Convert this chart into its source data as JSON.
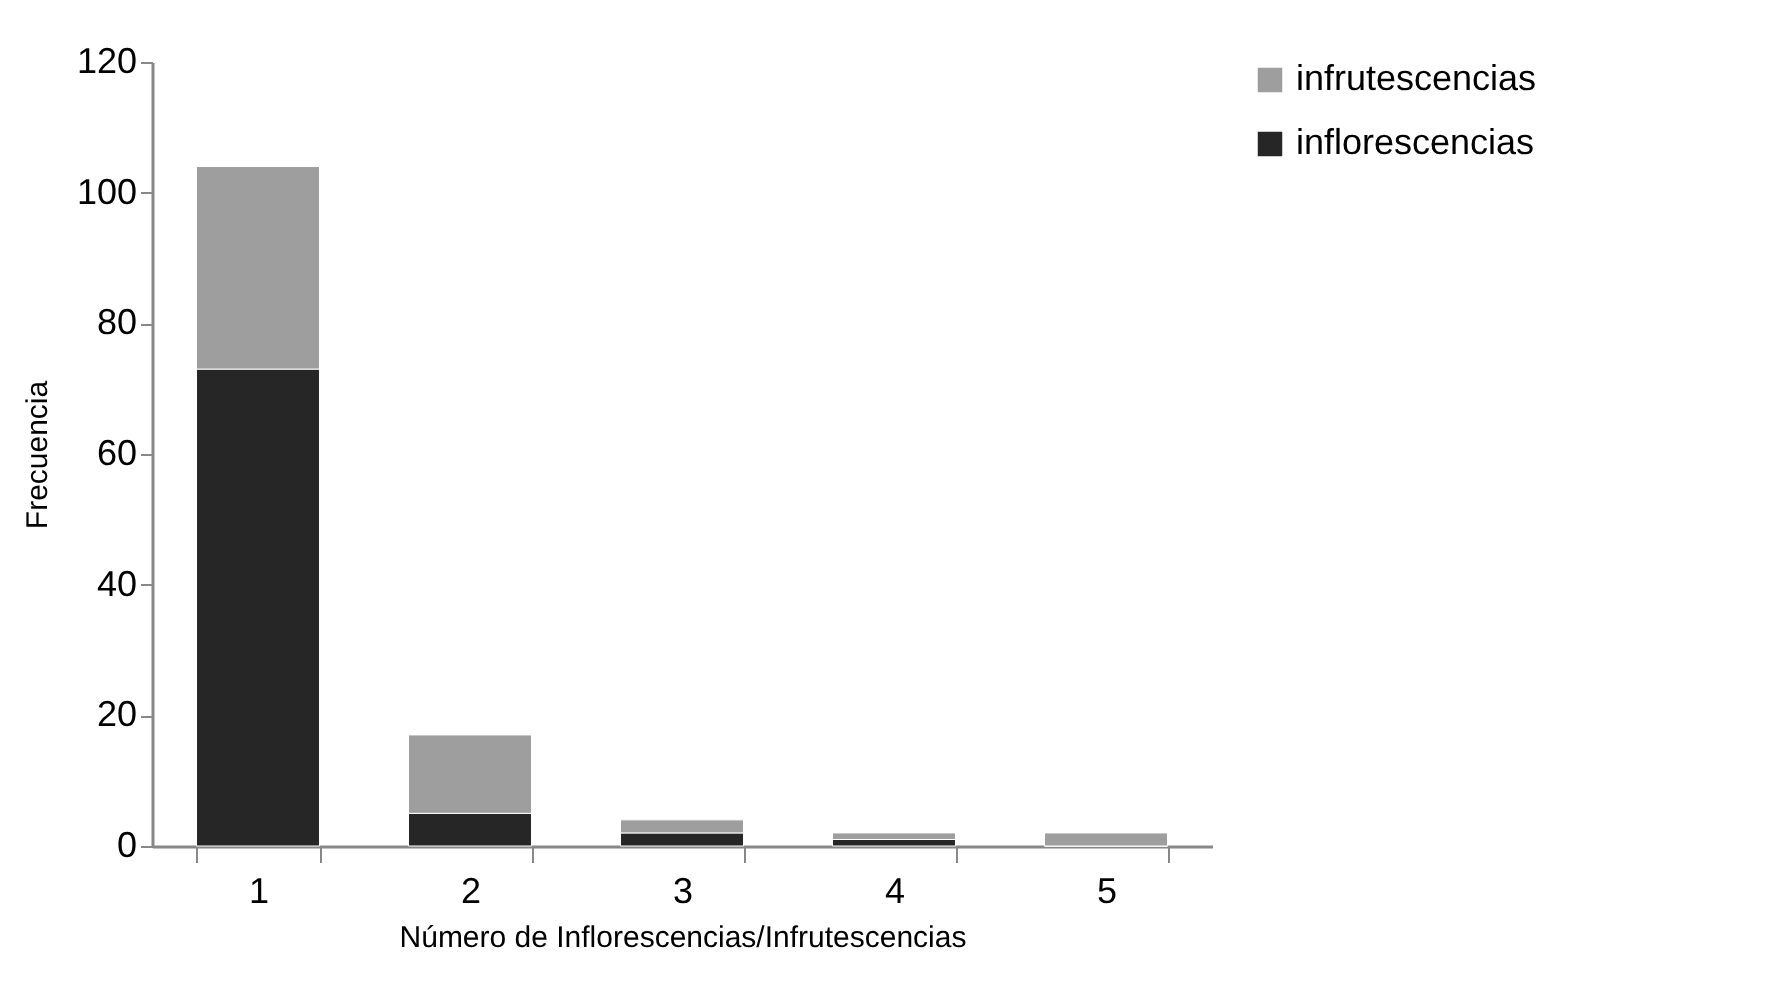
{
  "chart_data": {
    "type": "bar",
    "stacked": true,
    "xlabel": "Número de Inflorescencias/Infrutescencias",
    "ylabel": "Frecuencia",
    "categories": [
      "1",
      "2",
      "3",
      "4",
      "5"
    ],
    "series": [
      {
        "name": "inflorescencias",
        "color": "#262626",
        "values": [
          73,
          5,
          2,
          1,
          0
        ]
      },
      {
        "name": "infrutescencias",
        "color": "#9e9e9e",
        "values": [
          31,
          12,
          2,
          1,
          2
        ]
      }
    ],
    "ylim": [
      0,
      120
    ],
    "yticks": [
      0,
      20,
      40,
      60,
      80,
      100,
      120
    ],
    "grid": false,
    "legend": "right"
  }
}
